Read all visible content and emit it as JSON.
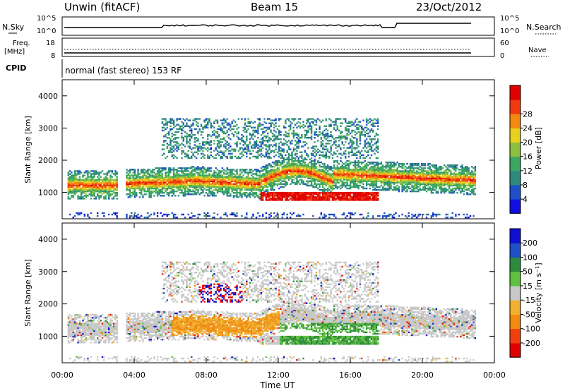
{
  "header": {
    "station": "Unwin (fitACF)",
    "beam": "Beam 15",
    "date": "23/Oct/2012"
  },
  "panels": {
    "nsky": {
      "left_label": "N.Sky",
      "right_label": "N.Search",
      "left_ticks": [
        "10^5",
        "10^0"
      ],
      "right_ticks": [
        "10^5",
        "10^0"
      ]
    },
    "freq": {
      "left_label_1": "Freq.",
      "left_label_2": "[MHz]",
      "right_label": "Nave",
      "left_ticks": [
        "18",
        "8"
      ],
      "right_ticks": [
        "60",
        "0"
      ]
    },
    "cpid": {
      "label": "CPID",
      "text": "normal (fast stereo) 153 RF"
    }
  },
  "chart_data": [
    {
      "type": "heatmap",
      "title": "",
      "ylabel": "Slant Range [km]",
      "ylim": [
        180,
        4500
      ],
      "yticks": [
        "1000",
        "2000",
        "3000",
        "4000"
      ],
      "colorbar": {
        "label": "Power [dB]",
        "range": [
          0,
          32
        ],
        "ticks": [
          "4",
          "8",
          "12",
          "16",
          "20",
          "24",
          "28"
        ],
        "colors": [
          "#1010e0",
          "#2050c8",
          "#2e8a7c",
          "#3aa860",
          "#8cc040",
          "#e8d020",
          "#f08a10",
          "#f03a10",
          "#e00000"
        ]
      }
    },
    {
      "type": "heatmap",
      "title": "",
      "ylabel": "Slant Range [km]",
      "xlabel": "Time UT",
      "ylim": [
        180,
        4500
      ],
      "yticks": [
        "1000",
        "2000",
        "3000",
        "4000"
      ],
      "xticks": [
        "00:00",
        "04:00",
        "08:00",
        "12:00",
        "16:00",
        "20:00",
        "00:00"
      ],
      "colorbar": {
        "label": "Velocity [m s⁻¹]",
        "range": [
          -250,
          250
        ],
        "ticks": [
          "200",
          "100",
          "50",
          "15",
          "-15",
          "-50",
          "-100",
          "-200"
        ],
        "colors": [
          "#e00000",
          "#f04010",
          "#f08a10",
          "#f0b030",
          "#c8c8c8",
          "#60c040",
          "#2e8a3c",
          "#2050c8",
          "#1010d0"
        ]
      }
    }
  ]
}
